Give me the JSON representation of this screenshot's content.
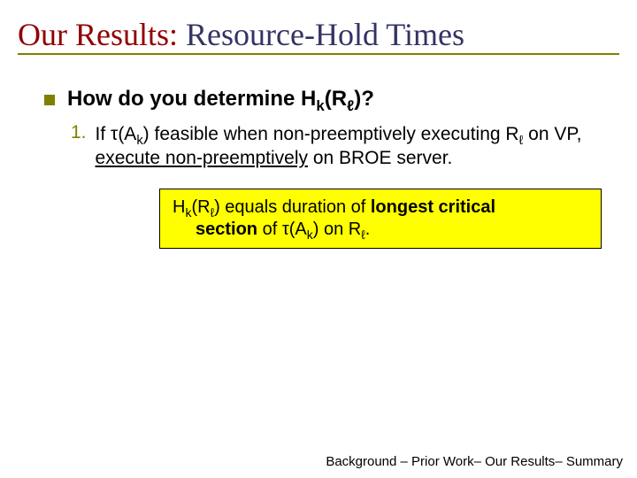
{
  "colors": {
    "title_accent": "#900000",
    "title_main": "#333366",
    "title_underline": "#808000",
    "bullet": "#808000",
    "numlabel": "#808000",
    "callout_bg": "#ffff00"
  },
  "title": {
    "part1": "Our Results:",
    "part2": "  Resource-Hold Times"
  },
  "question": {
    "pre": "How do you determine H",
    "sub1": "k",
    "mid": "(R",
    "sub2": "ℓ",
    "post": ")?"
  },
  "item1": {
    "num": "1.",
    "t1": "If τ(A",
    "sub1": "k",
    "t2": ") feasible when non-preemptively executing R",
    "sub2": "ℓ",
    "t3": " on VP, ",
    "und": "execute non-preemptively",
    "t4": " on BROE server."
  },
  "callout": {
    "l1a": "H",
    "l1s1": "k",
    "l1b": "(R",
    "l1s2": "ℓ",
    "l1c": ") equals duration of ",
    "l1bold": "longest critical",
    "l2bold": "section",
    "l2a": " of τ(A",
    "l2s1": "k",
    "l2b": ") on R",
    "l2s2": "ℓ",
    "l2c": "."
  },
  "footer": {
    "p1": "Background – Prior Work",
    "p2": "– Our Results",
    "p3": "– Summary"
  },
  "styling": {
    "slide_width": 720,
    "slide_height": 540,
    "title_fontsize": 36,
    "body_fontsize": 21,
    "callout_fontsize": 20,
    "footer_fontsize": 15
  }
}
